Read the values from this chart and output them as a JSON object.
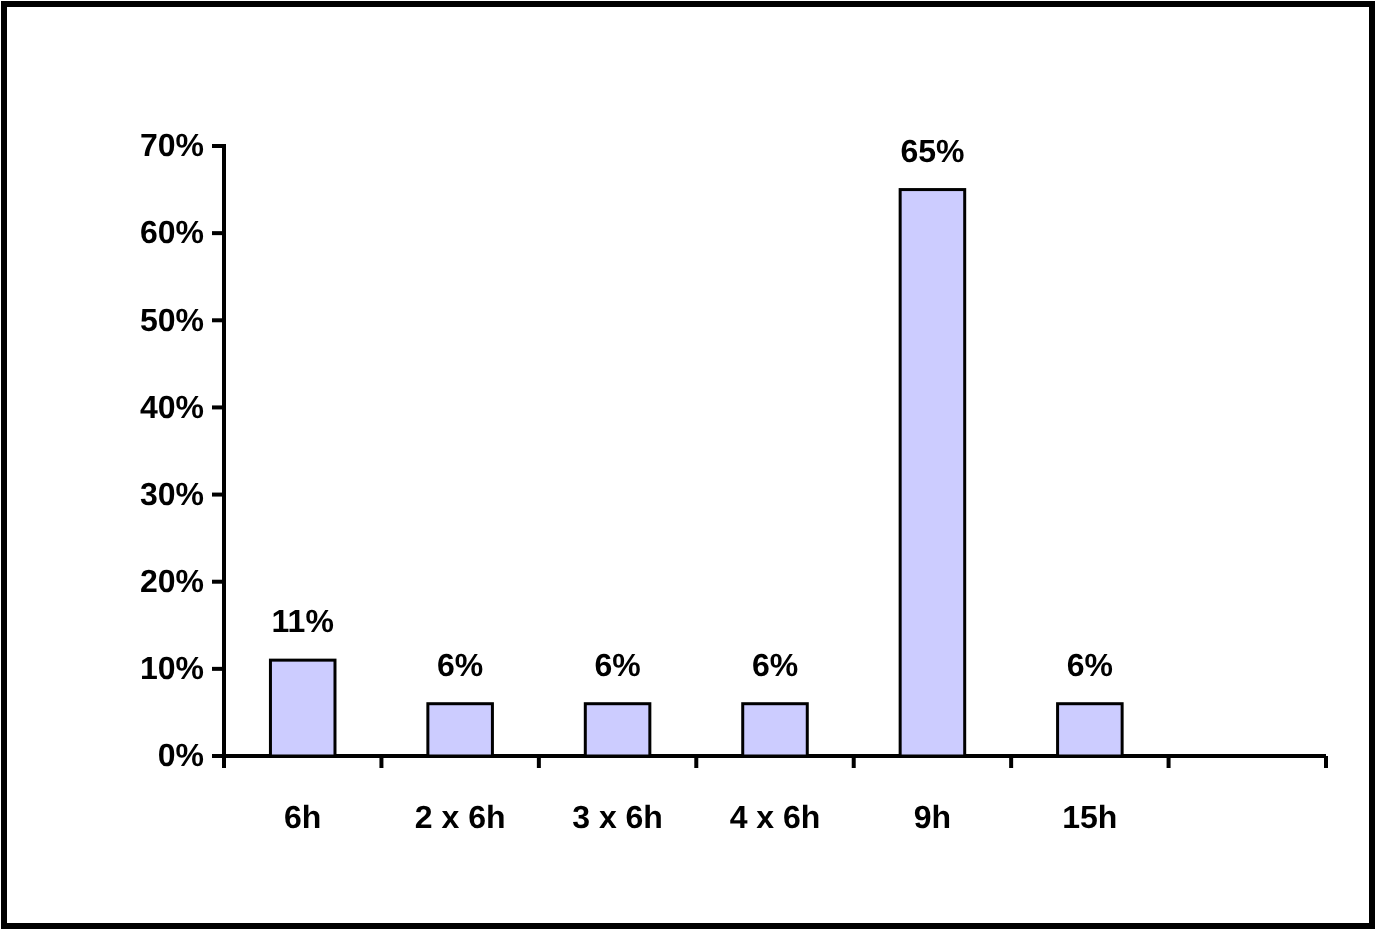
{
  "chart_data": {
    "type": "bar",
    "categories": [
      "6h",
      "2 x 6h",
      "3 x 6h",
      "4 x 6h",
      "9h",
      "15h",
      null
    ],
    "values": [
      11,
      6,
      6,
      6,
      65,
      6,
      null
    ],
    "value_labels": [
      "11%",
      "6%",
      "6%",
      "6%",
      "65%",
      "6%",
      null
    ],
    "color": "#ccccff",
    "ylim": [
      0,
      70
    ],
    "yticks": [
      {
        "value": 0,
        "label": "0%"
      },
      {
        "value": 10,
        "label": "10%"
      },
      {
        "value": 20,
        "label": "20%"
      },
      {
        "value": 30,
        "label": "30%"
      },
      {
        "value": 40,
        "label": "40%"
      },
      {
        "value": 50,
        "label": "50%"
      },
      {
        "value": 60,
        "label": "60%"
      },
      {
        "value": 70,
        "label": "70%"
      }
    ],
    "grid": false
  }
}
